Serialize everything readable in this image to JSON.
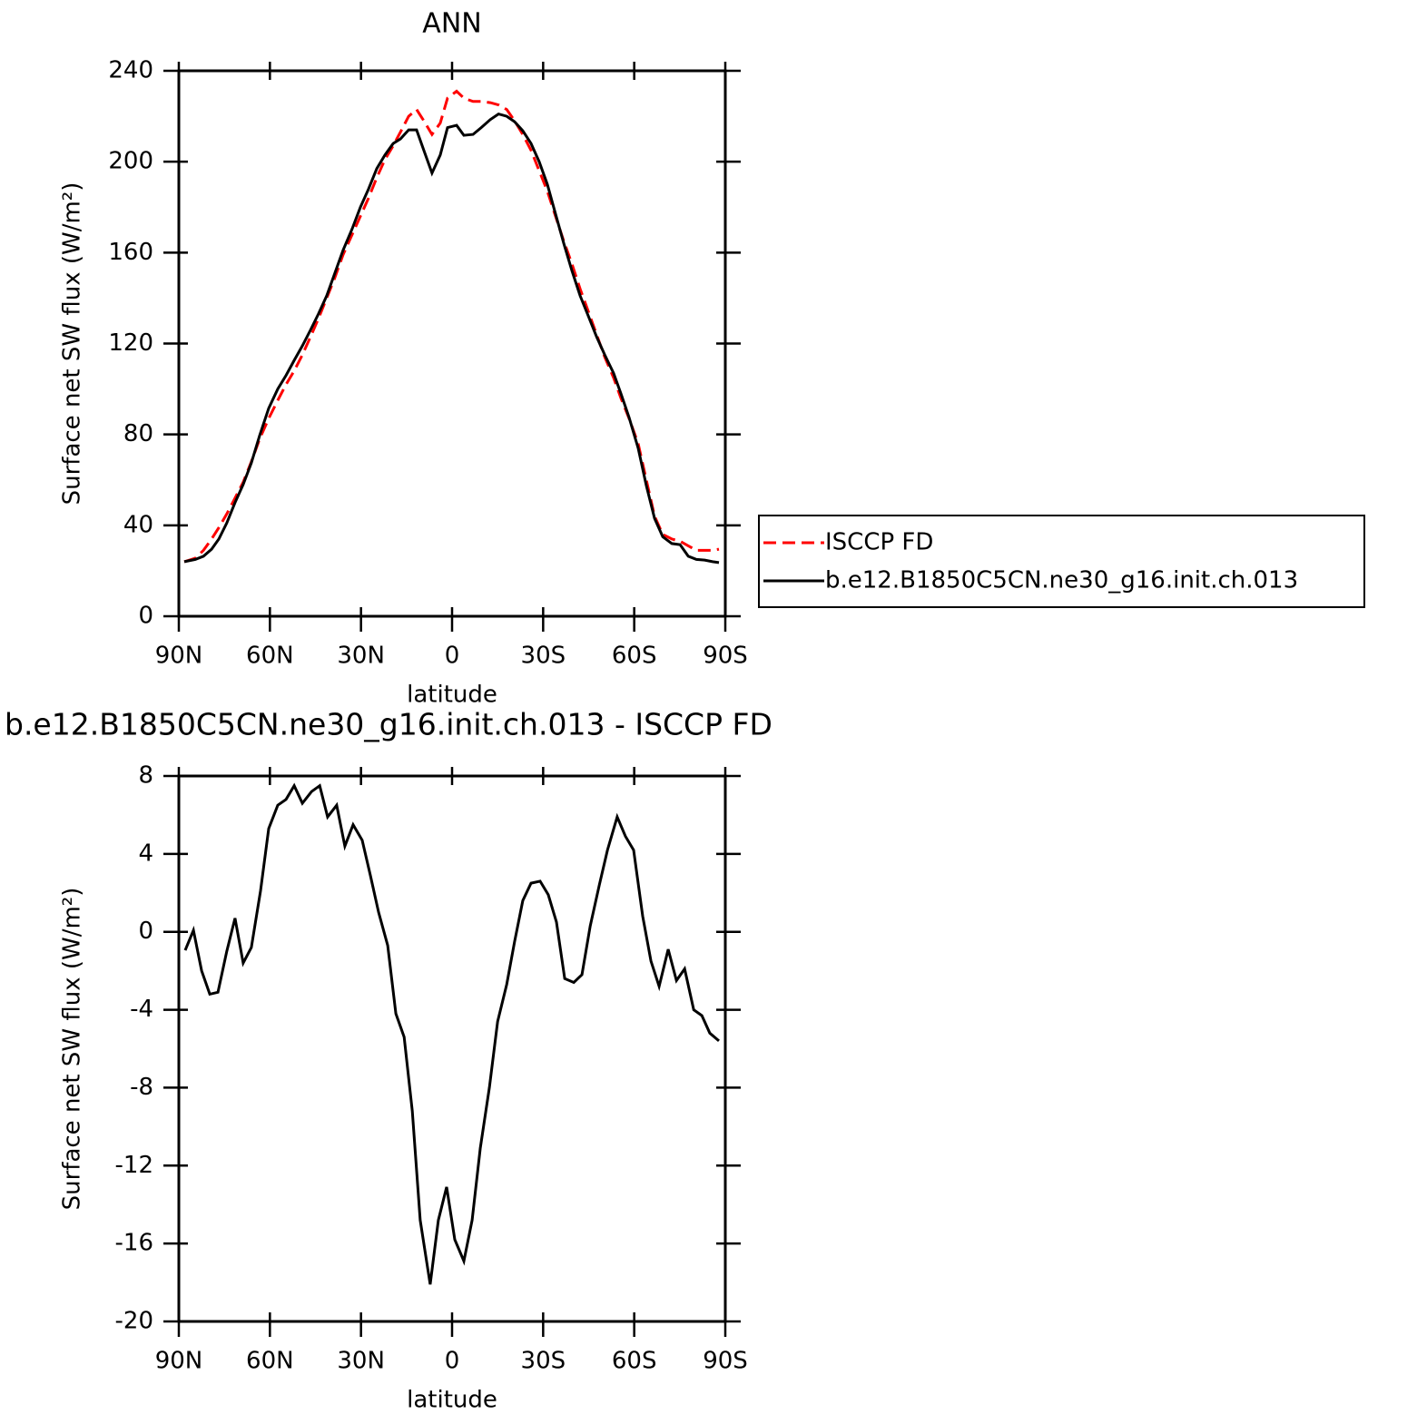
{
  "chart_data": [
    {
      "type": "line",
      "title": "ANN",
      "xlabel": "latitude",
      "ylabel": "Surface net SW flux (W/m²)",
      "x": [
        88.2,
        84.6,
        81.9,
        79.2,
        76.8,
        74.2,
        71.5,
        68.8,
        66.1,
        63.4,
        60.4,
        57.4,
        54.7,
        52.0,
        49.3,
        46.6,
        44.0,
        41.3,
        38.6,
        35.9,
        32.9,
        30.2,
        27.5,
        24.8,
        22.1,
        19.4,
        17.0,
        14.3,
        11.7,
        9.3,
        6.6,
        3.9,
        1.5,
        -1.5,
        -3.9,
        -6.9,
        -9.6,
        -12.6,
        -15.3,
        -18.0,
        -20.6,
        -23.3,
        -26.0,
        -28.7,
        -31.4,
        -34.1,
        -36.8,
        -39.5,
        -42.2,
        -44.9,
        -47.6,
        -50.3,
        -53.2,
        -55.6,
        -58.3,
        -61.3,
        -64.0,
        -66.7,
        -69.4,
        -72.4,
        -75.1,
        -77.8,
        -80.5,
        -83.2,
        -85.8,
        -87.9
      ],
      "series": [
        {
          "name": "ISCCP FD",
          "color": "#ff0000",
          "line_style": "dashed",
          "values": [
            24,
            25.5,
            29,
            34,
            39,
            45,
            52,
            59,
            68,
            78,
            87,
            95,
            102,
            108,
            115,
            123,
            131,
            140,
            149,
            159,
            168,
            176,
            184,
            193,
            201,
            207,
            213,
            220,
            223,
            218,
            212,
            217,
            228,
            231,
            228,
            226.5,
            226.5,
            226,
            225,
            223,
            218,
            212,
            205,
            196,
            187,
            176,
            165,
            155,
            144,
            134,
            124,
            114,
            105,
            96,
            87,
            76,
            60,
            44,
            36,
            34,
            33,
            31,
            29,
            29,
            29,
            29.5
          ]
        },
        {
          "name": "b.e12.B1850C5CN.ne30_g16.init.ch.013",
          "color": "#000000",
          "line_style": "solid",
          "values": [
            24,
            25,
            26.4,
            29.5,
            34,
            41,
            50,
            58,
            67.5,
            79.5,
            91.5,
            100,
            106,
            112.6,
            119,
            126,
            133,
            141,
            151,
            161,
            170.5,
            180,
            188,
            197,
            203,
            208,
            210,
            214,
            214,
            205,
            195,
            203,
            215,
            216,
            211.6,
            212,
            215,
            218.5,
            221,
            220,
            217.6,
            213.6,
            208,
            200,
            190,
            177,
            164,
            152,
            141,
            132,
            123,
            115,
            107,
            98,
            87.5,
            74,
            57.5,
            43,
            35,
            32,
            31.5,
            26.4,
            25,
            24.7,
            24,
            23.6
          ]
        }
      ],
      "xlim": [
        90,
        -90
      ],
      "xticks": [
        {
          "value": 90,
          "label": "90N"
        },
        {
          "value": 60,
          "label": "60N"
        },
        {
          "value": 30,
          "label": "30N"
        },
        0,
        {
          "value": -30,
          "label": "30S"
        },
        {
          "value": -60,
          "label": "60S"
        },
        {
          "value": -90,
          "label": "90S"
        }
      ],
      "ylim": [
        0,
        240
      ],
      "yticks": [
        0,
        40,
        80,
        120,
        160,
        200,
        240
      ],
      "legend": "right"
    },
    {
      "type": "line",
      "title": "b.e12.B1850C5CN.ne30_g16.init.ch.013 - ISCCP FD",
      "xlabel": "latitude",
      "ylabel": "Surface net SW flux (W/m²)",
      "x": [
        87.9,
        85.2,
        82.5,
        79.8,
        77.1,
        74.2,
        71.5,
        68.8,
        66.1,
        63.1,
        60.4,
        57.4,
        54.7,
        52.0,
        49.3,
        46.3,
        43.6,
        41.0,
        38.0,
        35.3,
        32.6,
        29.6,
        26.9,
        24.2,
        21.2,
        18.5,
        15.8,
        13.1,
        10.5,
        7.2,
        4.5,
        1.8,
        -0.9,
        -3.9,
        -6.6,
        -9.3,
        -12.3,
        -15.0,
        -18.0,
        -20.6,
        -23.3,
        -26.0,
        -29.0,
        -31.7,
        -34.4,
        -37.1,
        -40.1,
        -42.8,
        -45.5,
        -48.5,
        -51.2,
        -54.4,
        -57.1,
        -59.8,
        -62.8,
        -65.5,
        -68.2,
        -71.2,
        -73.9,
        -76.6,
        -79.6,
        -82.3,
        -84.9,
        -87.9
      ],
      "series": [
        {
          "color": "#000000",
          "line_style": "solid",
          "values": [
            -0.95,
            0.08,
            -2.0,
            -3.2,
            -3.1,
            -1.0,
            0.7,
            -1.6,
            -0.8,
            2.1,
            5.3,
            6.5,
            6.8,
            7.5,
            6.6,
            7.2,
            7.5,
            5.9,
            6.5,
            4.4,
            5.5,
            4.7,
            2.9,
            1.0,
            -0.7,
            -4.2,
            -5.4,
            -9.2,
            -14.8,
            -18.1,
            -14.8,
            -13.1,
            -15.8,
            -16.9,
            -14.8,
            -11.1,
            -8.0,
            -4.6,
            -2.7,
            -0.5,
            1.6,
            2.5,
            2.6,
            1.9,
            0.5,
            -2.4,
            -2.6,
            -2.2,
            0.3,
            2.4,
            4.2,
            5.9,
            4.9,
            4.2,
            0.8,
            -1.5,
            -2.8,
            -0.9,
            -2.5,
            -1.9,
            -4.0,
            -4.3,
            -5.2,
            -5.6
          ]
        }
      ],
      "xlim": [
        90,
        -90
      ],
      "xticks": [
        {
          "value": 90,
          "label": "90N"
        },
        {
          "value": 60,
          "label": "60N"
        },
        {
          "value": 30,
          "label": "30N"
        },
        0,
        {
          "value": -30,
          "label": "30S"
        },
        {
          "value": -60,
          "label": "60S"
        },
        {
          "value": -90,
          "label": "90S"
        }
      ],
      "ylim": [
        -20,
        8
      ],
      "yticks": [
        -20,
        -16,
        -12,
        -8,
        -4,
        0,
        4,
        8
      ]
    }
  ]
}
